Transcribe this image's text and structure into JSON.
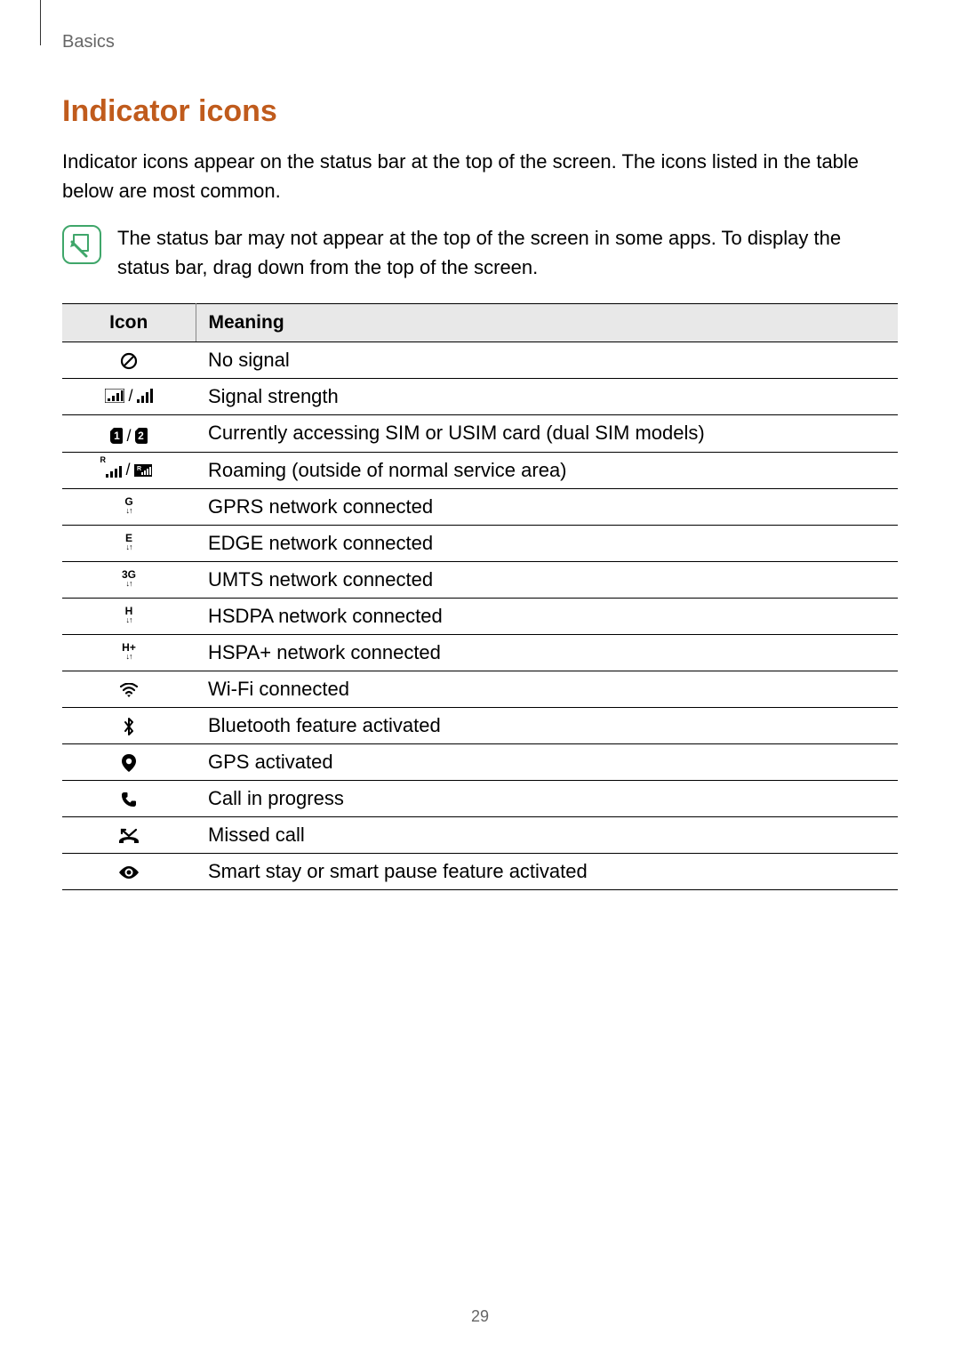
{
  "header": {
    "breadcrumb": "Basics"
  },
  "section_title": "Indicator icons",
  "intro_text": "Indicator icons appear on the status bar at the top of the screen. The icons listed in the table below are most common.",
  "note_text": "The status bar may not appear at the top of the screen in some apps. To display the status bar, drag down from the top of the screen.",
  "table": {
    "columns": [
      "Icon",
      "Meaning"
    ],
    "header_bg": "#e8e8e8",
    "border_color": "#000000",
    "font_size": 22,
    "rows": [
      {
        "icon_key": "no-signal",
        "meaning": "No signal"
      },
      {
        "icon_key": "signal",
        "meaning": "Signal strength"
      },
      {
        "icon_key": "sim12",
        "meaning": "Currently accessing SIM or USIM card (dual SIM models)"
      },
      {
        "icon_key": "roaming",
        "meaning": "Roaming (outside of normal service area)"
      },
      {
        "icon_key": "gprs",
        "net_label": "G",
        "meaning": "GPRS network connected"
      },
      {
        "icon_key": "edge",
        "net_label": "E",
        "meaning": "EDGE network connected"
      },
      {
        "icon_key": "umts",
        "net_label": "3G",
        "meaning": "UMTS network connected"
      },
      {
        "icon_key": "hsdpa",
        "net_label": "H",
        "meaning": "HSDPA network connected"
      },
      {
        "icon_key": "hspap",
        "net_label": "H+",
        "meaning": "HSPA+ network connected"
      },
      {
        "icon_key": "wifi",
        "meaning": "Wi-Fi connected"
      },
      {
        "icon_key": "bluetooth",
        "meaning": "Bluetooth feature activated"
      },
      {
        "icon_key": "gps",
        "meaning": "GPS activated"
      },
      {
        "icon_key": "call",
        "meaning": "Call in progress"
      },
      {
        "icon_key": "missed",
        "meaning": "Missed call"
      },
      {
        "icon_key": "smart-stay",
        "meaning": "Smart stay or smart pause feature activated"
      }
    ]
  },
  "colors": {
    "accent": "#c05b1c",
    "note_border": "#3fa66a",
    "text": "#000000",
    "muted": "#666666"
  },
  "page_number": "29"
}
